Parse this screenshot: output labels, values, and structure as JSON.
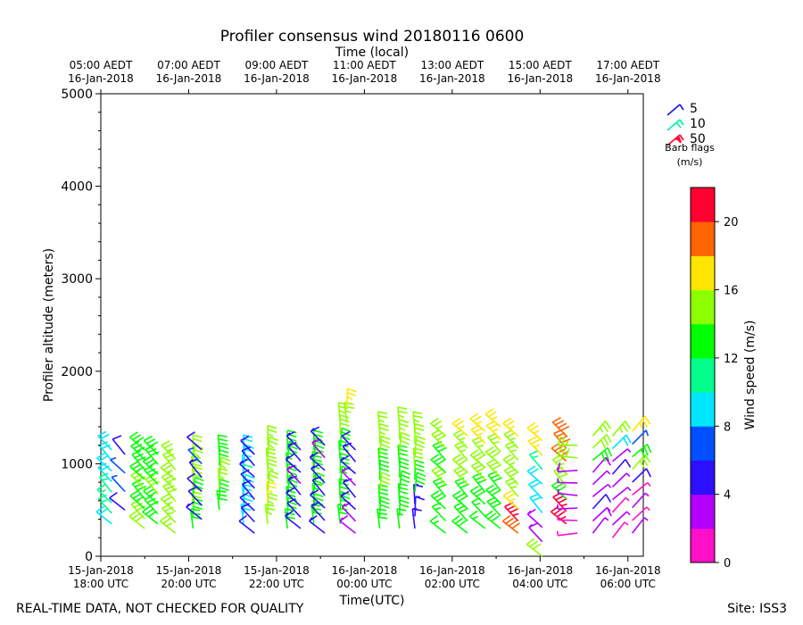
{
  "chart_data": {
    "type": "wind_barb_profile",
    "title": "Profiler consensus wind 20180116 0600",
    "top_axis_label": "Time (local)",
    "xlabel": "Time(UTC)",
    "ylabel": "Profiler altitude (meters)",
    "ylim": [
      0,
      5000
    ],
    "y_ticks": [
      0,
      1000,
      2000,
      3000,
      4000,
      5000
    ],
    "y_tick_labels": [
      "0",
      "1000",
      "2000",
      "3000",
      "4000",
      "5000"
    ],
    "xlim_hours": [
      0,
      12.35
    ],
    "x_ticks": [
      {
        "h": 0,
        "line1": "15-Jan-2018",
        "line2": "18:00 UTC"
      },
      {
        "h": 2,
        "line1": "15-Jan-2018",
        "line2": "20:00 UTC"
      },
      {
        "h": 4,
        "line1": "15-Jan-2018",
        "line2": "22:00 UTC"
      },
      {
        "h": 6,
        "line1": "16-Jan-2018",
        "line2": "00:00 UTC"
      },
      {
        "h": 8,
        "line1": "16-Jan-2018",
        "line2": "02:00 UTC"
      },
      {
        "h": 10,
        "line1": "16-Jan-2018",
        "line2": "04:00 UTC"
      },
      {
        "h": 12,
        "line1": "16-Jan-2018",
        "line2": "06:00 UTC"
      }
    ],
    "top_ticks": [
      {
        "h": 0,
        "line1": "05:00 AEDT",
        "line2": "16-Jan-2018"
      },
      {
        "h": 2,
        "line1": "07:00 AEDT",
        "line2": "16-Jan-2018"
      },
      {
        "h": 4,
        "line1": "09:00 AEDT",
        "line2": "16-Jan-2018"
      },
      {
        "h": 6,
        "line1": "11:00 AEDT",
        "line2": "16-Jan-2018"
      },
      {
        "h": 8,
        "line1": "13:00 AEDT",
        "line2": "16-Jan-2018"
      },
      {
        "h": 10,
        "line1": "15:00 AEDT",
        "line2": "16-Jan-2018"
      },
      {
        "h": 12,
        "line1": "17:00 AEDT",
        "line2": "16-Jan-2018"
      }
    ],
    "barb_legend": {
      "entries": [
        {
          "label": "5",
          "color": "#1a0ff0"
        },
        {
          "label": "10",
          "color": "#00f0a0"
        },
        {
          "label": "50",
          "color": "#ff0030"
        }
      ],
      "title_line1": "Barb flags",
      "title_line2": "(m/s)"
    },
    "colorbar": {
      "label": "Wind speed (m/s)",
      "min": 0,
      "max": 22,
      "ticks": [
        0,
        4,
        8,
        12,
        16,
        20
      ],
      "tick_labels": [
        "0",
        "4",
        "8",
        "12",
        "16",
        "20"
      ],
      "colors": [
        "#ff0fc8",
        "#b400ff",
        "#2d0fff",
        "#0050ff",
        "#00e6ff",
        "#00ff8c",
        "#00ff00",
        "#8cff00",
        "#ffe600",
        "#ff6400",
        "#ff0030"
      ]
    },
    "columns": [
      {
        "h": 0.25,
        "bot": 350,
        "top": 1150,
        "speeds": [
          9,
          10,
          10,
          10,
          9,
          9,
          8,
          8
        ],
        "dir": "NW"
      },
      {
        "h": 0.55,
        "bot": 500,
        "top": 1100,
        "speeds": [
          5,
          6,
          6,
          5
        ],
        "dir": "NW"
      },
      {
        "h": 1.0,
        "bot": 300,
        "top": 1150,
        "speeds": [
          14,
          14,
          13,
          13,
          14,
          13,
          13,
          13,
          13
        ],
        "dir": "NW"
      },
      {
        "h": 1.3,
        "bot": 350,
        "top": 1100,
        "speeds": [
          13,
          13,
          13,
          14,
          13,
          13,
          13,
          13
        ],
        "dir": "NW"
      },
      {
        "h": 1.7,
        "bot": 250,
        "top": 1050,
        "speeds": [
          15,
          15,
          15,
          14,
          14,
          15,
          15,
          15
        ],
        "dir": "NW"
      },
      {
        "h": 2.1,
        "bot": 300,
        "top": 1100,
        "speeds": [
          13,
          13,
          14,
          13,
          14,
          14,
          15,
          15
        ],
        "dir": "N"
      },
      {
        "h": 2.3,
        "bot": 400,
        "top": 1150,
        "speeds": [
          4,
          5,
          5,
          4,
          6,
          5
        ],
        "dir": "NW"
      },
      {
        "h": 2.7,
        "bot": 500,
        "top": 1100,
        "speeds": [
          13,
          13,
          15,
          15,
          13,
          13
        ],
        "dir": "N"
      },
      {
        "h": 3.25,
        "bot": 350,
        "top": 1100,
        "speeds": [
          9,
          9,
          8,
          9,
          10,
          9,
          8,
          9
        ],
        "dir": "N"
      },
      {
        "h": 3.5,
        "bot": 250,
        "top": 1100,
        "speeds": [
          5,
          5,
          5,
          5,
          5,
          4,
          5,
          5
        ],
        "dir": "NW"
      },
      {
        "h": 3.8,
        "bot": 350,
        "top": 1200,
        "speeds": [
          15,
          15,
          16,
          15,
          15,
          14,
          15,
          15
        ],
        "dir": "N"
      },
      {
        "h": 4.25,
        "bot": 300,
        "top": 1150,
        "speeds": [
          13,
          13,
          13,
          13,
          13,
          12,
          13,
          13
        ],
        "dir": "N"
      },
      {
        "h": 4.55,
        "bot": 300,
        "top": 1150,
        "speeds": [
          4,
          5,
          4,
          4,
          3,
          4,
          4,
          4
        ],
        "dir": "NW"
      },
      {
        "h": 4.85,
        "bot": 350,
        "top": 1150,
        "speeds": [
          13,
          13,
          12,
          13,
          12,
          13,
          13,
          13
        ],
        "dir": "N"
      },
      {
        "h": 5.1,
        "bot": 250,
        "top": 1200,
        "speeds": [
          4,
          4,
          4,
          5,
          4,
          4,
          3,
          4
        ],
        "dir": "NW"
      },
      {
        "h": 5.45,
        "bot": 350,
        "top": 1450,
        "speeds": [
          13,
          13,
          13,
          12,
          13,
          13,
          13,
          14,
          15
        ],
        "dir": "N"
      },
      {
        "h": 5.6,
        "bot": 1450,
        "top": 1600,
        "speeds": [
          15,
          16
        ],
        "dir": "N"
      },
      {
        "h": 5.8,
        "bot": 250,
        "top": 1150,
        "speeds": [
          3,
          3,
          4,
          4,
          3,
          4,
          4,
          5
        ],
        "dir": "NW"
      },
      {
        "h": 6.35,
        "bot": 300,
        "top": 1350,
        "speeds": [
          13,
          13,
          13,
          14,
          13,
          13,
          14,
          15,
          15
        ],
        "dir": "N"
      },
      {
        "h": 6.8,
        "bot": 300,
        "top": 1400,
        "speeds": [
          12,
          13,
          13,
          13,
          13,
          13,
          14,
          15,
          15
        ],
        "dir": "N"
      },
      {
        "h": 7.15,
        "bot": 300,
        "top": 1350,
        "speeds": [
          4,
          4,
          4,
          13,
          13,
          14,
          14,
          15,
          15
        ],
        "dir": "N"
      },
      {
        "h": 7.85,
        "bot": 250,
        "top": 1300,
        "speeds": [
          12,
          12,
          13,
          13,
          14,
          13,
          13,
          14,
          15
        ],
        "dir": "NW"
      },
      {
        "h": 8.35,
        "bot": 250,
        "top": 1300,
        "speeds": [
          13,
          13,
          13,
          13,
          14,
          14,
          15,
          15,
          16
        ],
        "dir": "NW"
      },
      {
        "h": 8.75,
        "bot": 300,
        "top": 1350,
        "speeds": [
          12,
          12,
          13,
          13,
          14,
          14,
          15,
          16,
          17
        ],
        "dir": "NW"
      },
      {
        "h": 9.1,
        "bot": 300,
        "top": 1400,
        "speeds": [
          13,
          13,
          13,
          13,
          14,
          14,
          15,
          16,
          16
        ],
        "dir": "NW"
      },
      {
        "h": 9.5,
        "bot": 250,
        "top": 1300,
        "speeds": [
          19,
          20,
          16,
          15,
          14,
          15,
          15,
          15,
          16
        ],
        "dir": "NW"
      },
      {
        "h": 10.05,
        "bot": 0,
        "top": 1250,
        "speeds": [
          14,
          3,
          3,
          9,
          9,
          9,
          10,
          16,
          17
        ],
        "dir": "NW"
      },
      {
        "h": 10.6,
        "bot": 350,
        "top": 1300,
        "speeds": [
          20,
          20,
          13,
          14,
          15,
          18,
          19,
          19
        ],
        "dir": "NW"
      },
      {
        "h": 10.85,
        "bot": 250,
        "top": 1200,
        "speeds": [
          1,
          1,
          2,
          2,
          2,
          3,
          14,
          15
        ],
        "dir": "W"
      },
      {
        "h": 11.2,
        "bot": 250,
        "top": 1300,
        "speeds": [
          2,
          3,
          5,
          2,
          2,
          3,
          13,
          14,
          15
        ],
        "dir": "NE"
      },
      {
        "h": 11.65,
        "bot": 200,
        "top": 1300,
        "speeds": [
          1,
          2,
          1,
          2,
          2,
          5,
          2,
          8,
          15
        ],
        "dir": "NE"
      },
      {
        "h": 12.1,
        "bot": 250,
        "top": 1350,
        "speeds": [
          2,
          1,
          2,
          1,
          5,
          14,
          13,
          6,
          16
        ],
        "dir": "NE"
      }
    ]
  },
  "footer": {
    "left_note": "REAL-TIME DATA, NOT CHECKED FOR QUALITY",
    "site": "Site: ISS3"
  }
}
